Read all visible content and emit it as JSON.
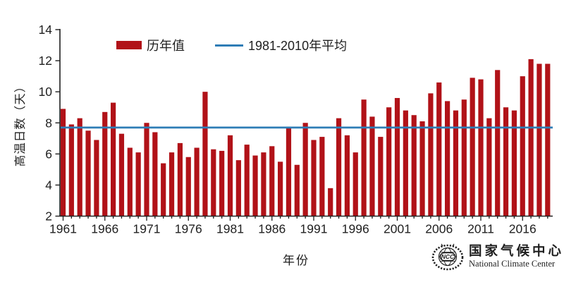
{
  "chart_data": {
    "type": "bar",
    "title": "",
    "xlabel": "年份",
    "ylabel": "高温日数（天）",
    "ylim": [
      2,
      14
    ],
    "ytick_values": [
      2,
      4,
      6,
      8,
      10,
      12,
      14
    ],
    "xtick_labels": [
      "1961",
      "1966",
      "1971",
      "1976",
      "1981",
      "1986",
      "1991",
      "1996",
      "2001",
      "2006",
      "2011",
      "2016"
    ],
    "grid": "off",
    "legend_position": "top",
    "years": [
      1961,
      1962,
      1963,
      1964,
      1965,
      1966,
      1967,
      1968,
      1969,
      1970,
      1971,
      1972,
      1973,
      1974,
      1975,
      1976,
      1977,
      1978,
      1979,
      1980,
      1981,
      1982,
      1983,
      1984,
      1985,
      1986,
      1987,
      1988,
      1989,
      1990,
      1991,
      1992,
      1993,
      1994,
      1995,
      1996,
      1997,
      1998,
      1999,
      2000,
      2001,
      2002,
      2003,
      2004,
      2005,
      2006,
      2007,
      2008,
      2009,
      2010,
      2011,
      2012,
      2013,
      2014,
      2015,
      2016,
      2017,
      2018,
      2019
    ],
    "series": [
      {
        "name": "历年值",
        "type": "bar",
        "color": "#b11218",
        "values": [
          8.9,
          7.9,
          8.3,
          7.5,
          6.9,
          8.7,
          9.3,
          7.3,
          6.4,
          6.1,
          8.0,
          7.4,
          5.4,
          6.1,
          6.7,
          5.8,
          6.4,
          10.0,
          6.3,
          6.2,
          7.2,
          5.6,
          6.6,
          5.9,
          6.1,
          6.5,
          5.5,
          7.7,
          5.3,
          8.0,
          6.9,
          7.1,
          3.8,
          8.3,
          7.2,
          6.1,
          9.5,
          8.4,
          7.1,
          9.0,
          9.6,
          8.8,
          8.5,
          8.1,
          9.9,
          10.6,
          9.4,
          8.8,
          9.5,
          10.9,
          10.8,
          8.3,
          11.4,
          9.0,
          8.8,
          11.0,
          12.1,
          11.8,
          11.8
        ]
      }
    ],
    "average_line": {
      "name": "1981-2010年平均",
      "value": 7.7,
      "color": "#2e7db6"
    },
    "colors": {
      "bar": "#b11218",
      "average_line": "#2e7db6",
      "axis": "#1f1f1f",
      "text": "#1f1f1f",
      "background": "#ffffff"
    }
  },
  "footer": {
    "org_cn": "国家气候中心",
    "org_en": "National Climate Center",
    "emblem_text": "NCC"
  }
}
